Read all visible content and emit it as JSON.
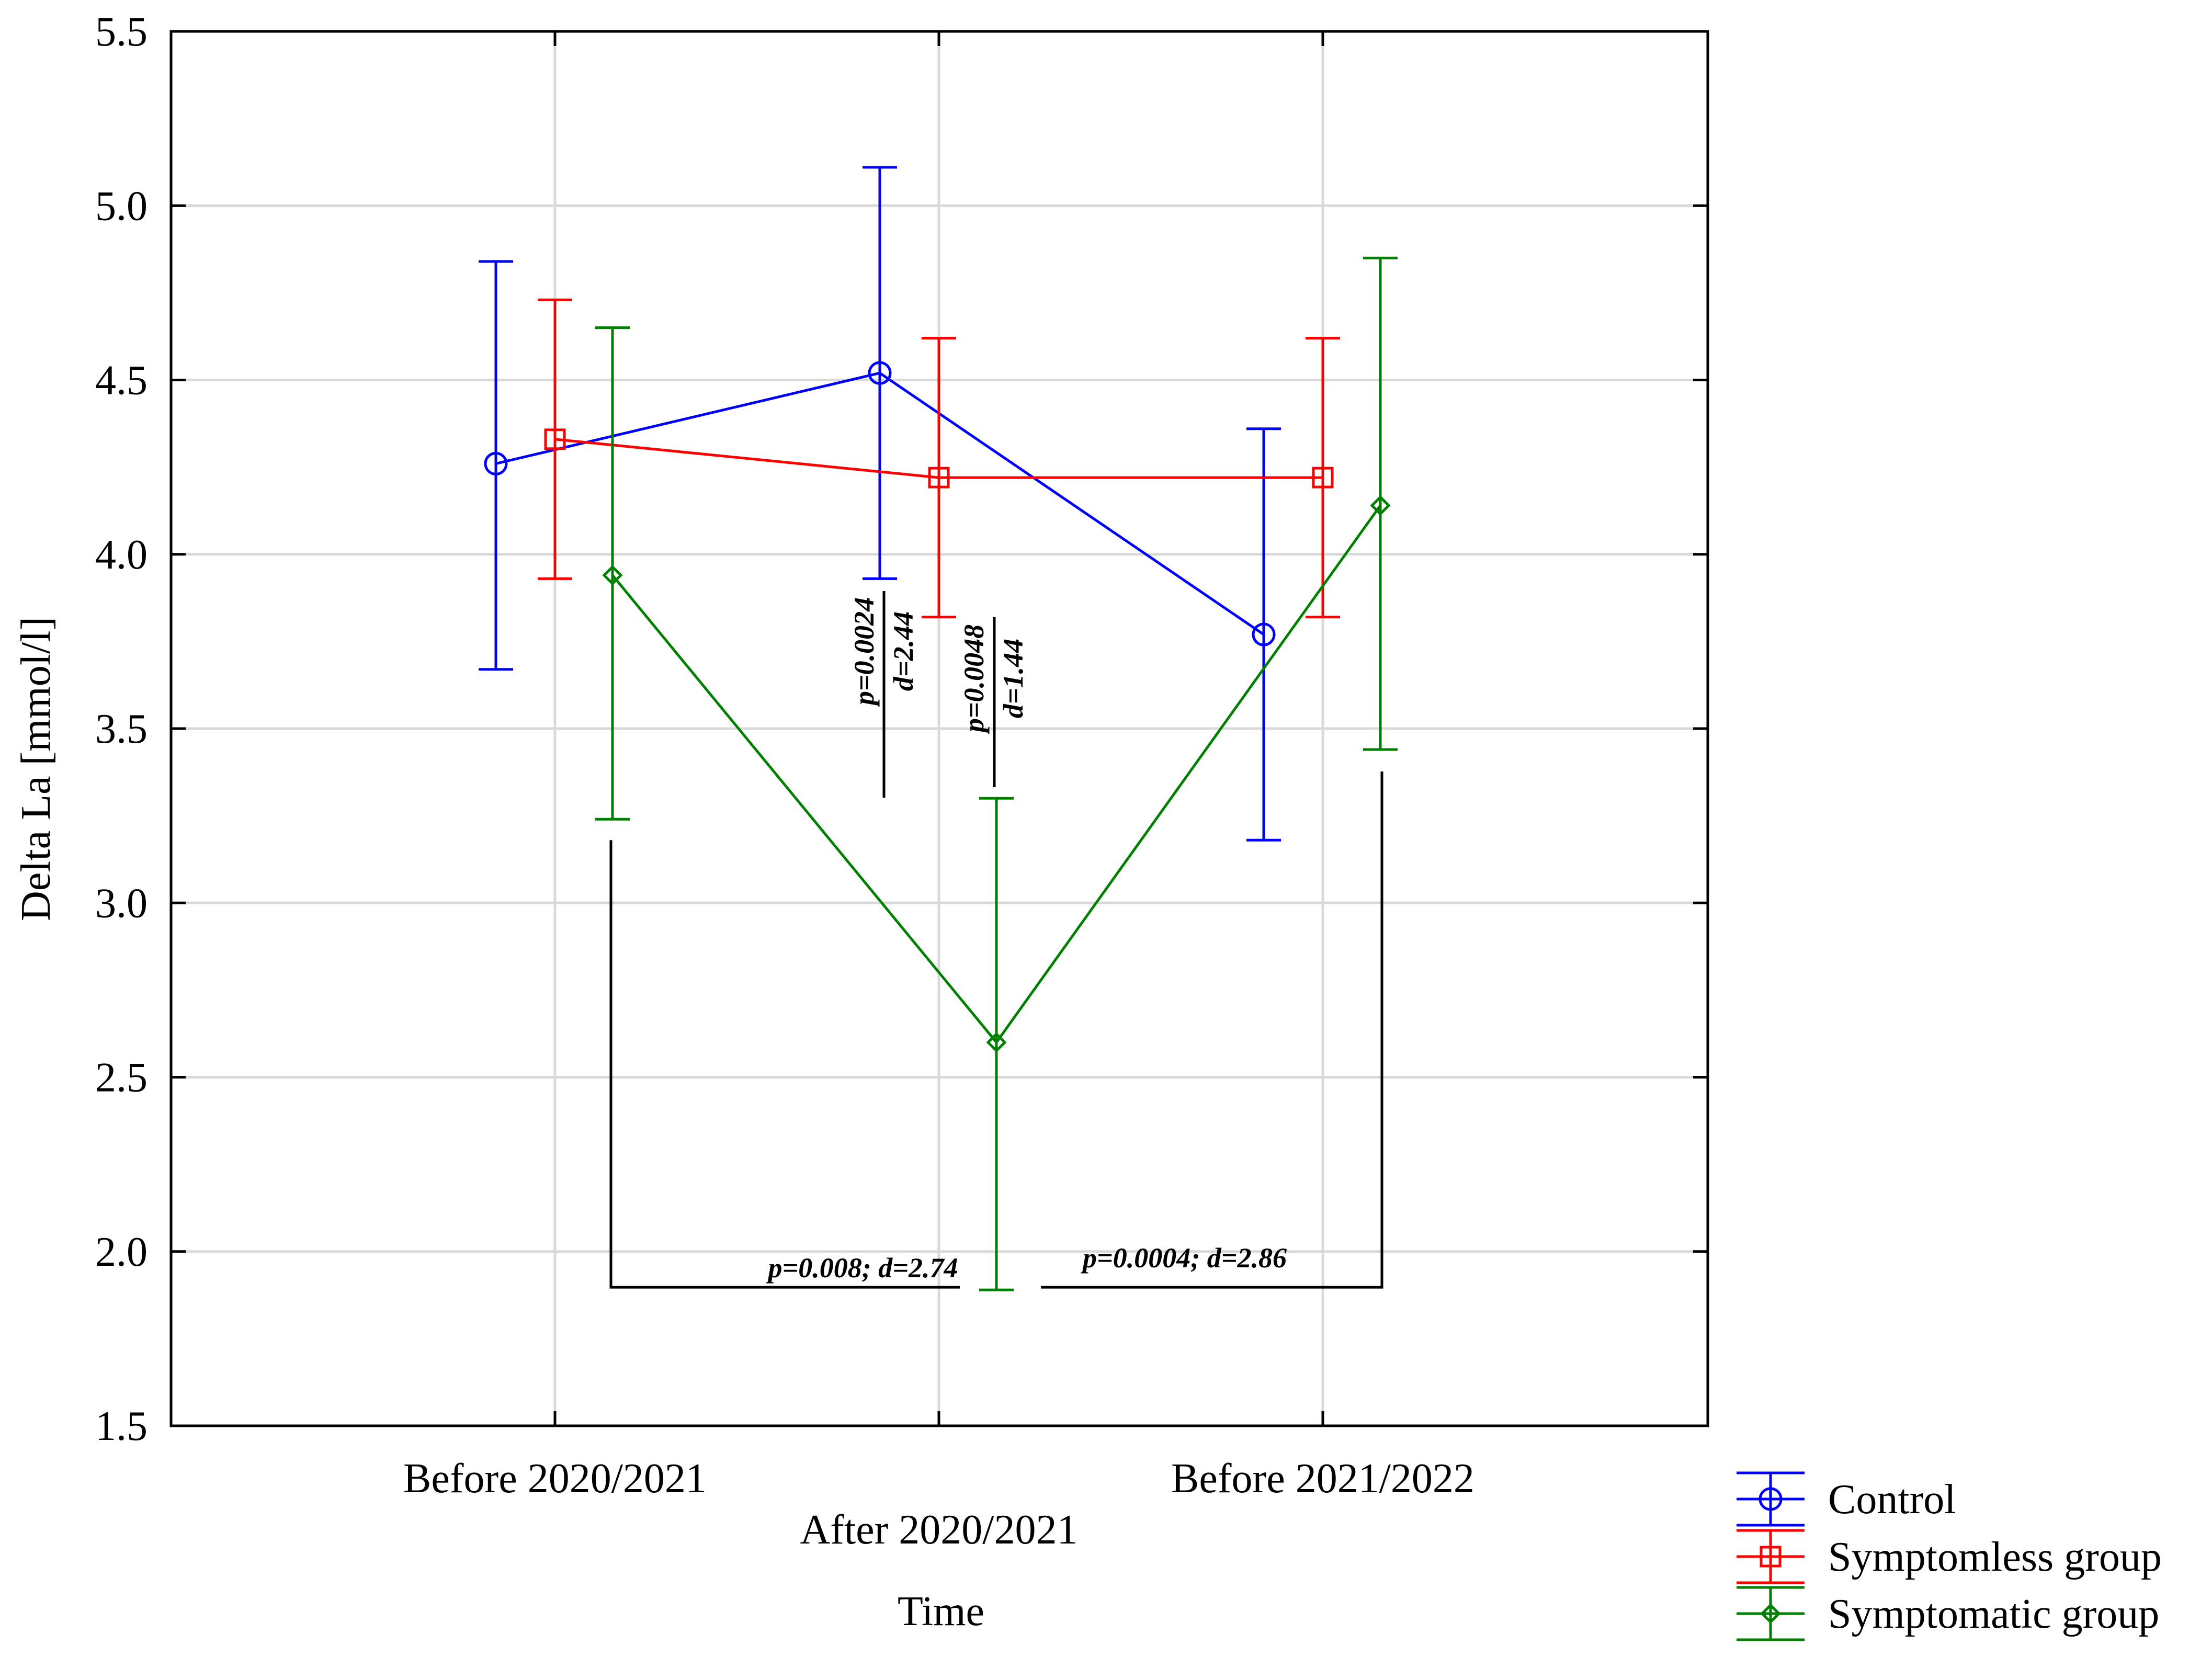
{
  "chart_data": {
    "type": "line",
    "ylabel": "Delta La [mmol/l]",
    "xlabel": "Time",
    "ylim": [
      1.5,
      5.5
    ],
    "yticks": [
      "1.5",
      "2.0",
      "2.5",
      "3.0",
      "3.5",
      "4.0",
      "4.5",
      "5.0",
      "5.5"
    ],
    "categories": [
      "Before 2020/2021",
      "After 2020/2021",
      "Before 2021/2022"
    ],
    "grid": true,
    "legend_position": "bottom-right",
    "series": [
      {
        "name": "Control",
        "color": "#0000ff",
        "marker": "circle",
        "values": [
          4.26,
          4.52,
          3.77
        ],
        "lower": [
          3.67,
          3.93,
          3.18
        ],
        "upper": [
          4.84,
          5.11,
          4.36
        ]
      },
      {
        "name": "Symptomless group",
        "color": "#ff0000",
        "marker": "square",
        "values": [
          4.33,
          4.22,
          4.22
        ],
        "lower": [
          3.93,
          3.82,
          3.82
        ],
        "upper": [
          4.73,
          4.62,
          4.62
        ]
      },
      {
        "name": "Symptomatic group",
        "color": "#008000",
        "marker": "diamond",
        "values": [
          3.94,
          2.6,
          4.14
        ],
        "lower": [
          3.24,
          1.89,
          3.44
        ],
        "upper": [
          4.65,
          3.3,
          4.85
        ]
      }
    ],
    "annotations": [
      {
        "p": "p=0.0024",
        "d": "d=2.44"
      },
      {
        "p": "p=0.0048",
        "d": "d=1.44"
      },
      {
        "text": "p=0.008; d=2.74"
      },
      {
        "text": "p=0.0004; d=2.86"
      }
    ]
  }
}
